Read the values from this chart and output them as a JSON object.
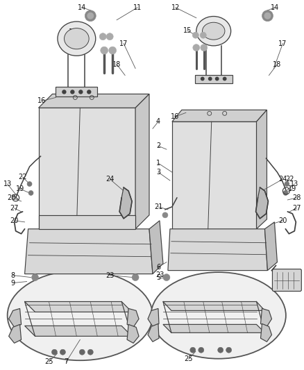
{
  "bg_color": "#ffffff",
  "line_color": "#404040",
  "label_color": "#111111",
  "figsize": [
    4.38,
    5.33
  ],
  "dpi": 100,
  "lw": 0.85,
  "fs": 7.0
}
